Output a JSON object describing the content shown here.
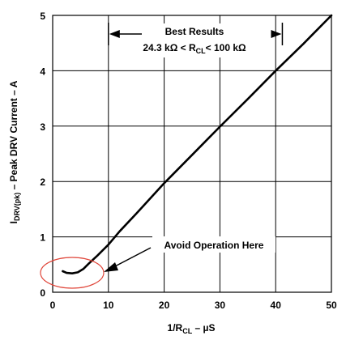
{
  "chart_data": {
    "type": "line",
    "xlabel": {
      "main": "1/R",
      "sub": "CL",
      "tail": " – µS"
    },
    "ylabel": {
      "pre": "I",
      "sub": "DRV(pk)",
      "tail": " – Peak DRV Current – A"
    },
    "xlim": [
      0,
      50
    ],
    "ylim": [
      0,
      5
    ],
    "x_ticks": [
      0,
      10,
      20,
      30,
      40,
      50
    ],
    "y_ticks": [
      0,
      1,
      2,
      3,
      4,
      5
    ],
    "grid": true,
    "series": [
      {
        "color": "#000000",
        "points": [
          [
            1.8,
            0.38
          ],
          [
            2.5,
            0.35
          ],
          [
            3.5,
            0.34
          ],
          [
            4.5,
            0.36
          ],
          [
            5.5,
            0.42
          ],
          [
            6.5,
            0.52
          ],
          [
            8,
            0.66
          ],
          [
            10,
            0.86
          ],
          [
            12,
            1.1
          ],
          [
            15,
            1.42
          ],
          [
            20,
            1.97
          ],
          [
            25,
            2.48
          ],
          [
            30,
            2.99
          ],
          [
            35,
            3.49
          ],
          [
            40,
            4.0
          ],
          [
            45,
            4.49
          ],
          [
            50,
            5.0
          ]
        ]
      }
    ],
    "annotations": {
      "best_results": {
        "title": "Best Results",
        "range_pre": "24.3  kΩ < R",
        "range_sub": "CL",
        "range_post": "< 100 kΩ",
        "x_from": 10,
        "x_to": 41.2
      },
      "avoid": {
        "text": "Avoid Operation Here",
        "ellipse_color": "#e0463a"
      }
    }
  }
}
